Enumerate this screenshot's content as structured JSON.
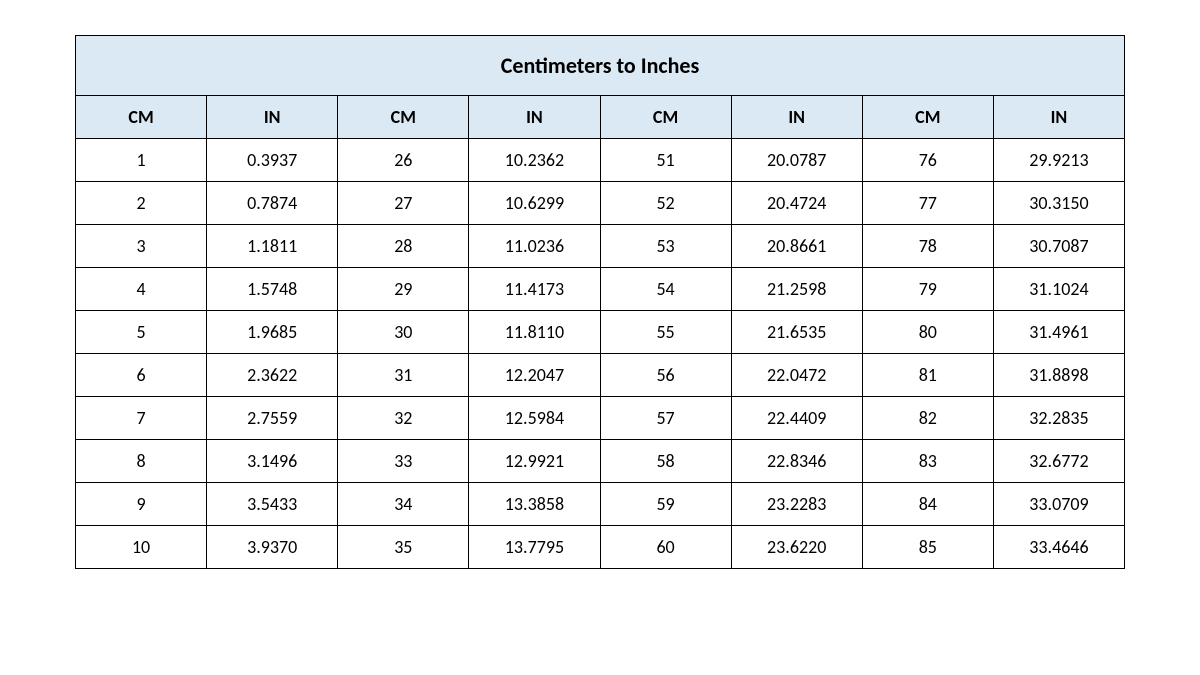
{
  "table": {
    "title": "Centimeters to Inches",
    "columns": [
      "CM",
      "IN",
      "CM",
      "IN",
      "CM",
      "IN",
      "CM",
      "IN"
    ],
    "rows": [
      [
        "1",
        "0.3937",
        "26",
        "10.2362",
        "51",
        "20.0787",
        "76",
        "29.9213"
      ],
      [
        "2",
        "0.7874",
        "27",
        "10.6299",
        "52",
        "20.4724",
        "77",
        "30.3150"
      ],
      [
        "3",
        "1.1811",
        "28",
        "11.0236",
        "53",
        "20.8661",
        "78",
        "30.7087"
      ],
      [
        "4",
        "1.5748",
        "29",
        "11.4173",
        "54",
        "21.2598",
        "79",
        "31.1024"
      ],
      [
        "5",
        "1.9685",
        "30",
        "11.8110",
        "55",
        "21.6535",
        "80",
        "31.4961"
      ],
      [
        "6",
        "2.3622",
        "31",
        "12.2047",
        "56",
        "22.0472",
        "81",
        "31.8898"
      ],
      [
        "7",
        "2.7559",
        "32",
        "12.5984",
        "57",
        "22.4409",
        "82",
        "32.2835"
      ],
      [
        "8",
        "3.1496",
        "33",
        "12.9921",
        "58",
        "22.8346",
        "83",
        "32.6772"
      ],
      [
        "9",
        "3.5433",
        "34",
        "13.3858",
        "59",
        "23.2283",
        "84",
        "33.0709"
      ],
      [
        "10",
        "3.9370",
        "35",
        "13.7795",
        "60",
        "23.6220",
        "85",
        "33.4646"
      ]
    ],
    "styling": {
      "type": "table",
      "header_bg_color": "#dbe9f5",
      "cell_bg_color": "#ffffff",
      "border_color": "#000000",
      "border_width": 1.5,
      "title_fontsize": 22,
      "title_fontweight": 700,
      "header_fontsize": 18,
      "header_fontweight": 700,
      "cell_fontsize": 18,
      "cell_fontweight": 400,
      "text_color": "#000000",
      "font_family": "Calibri",
      "column_count": 8,
      "row_count": 10
    }
  }
}
